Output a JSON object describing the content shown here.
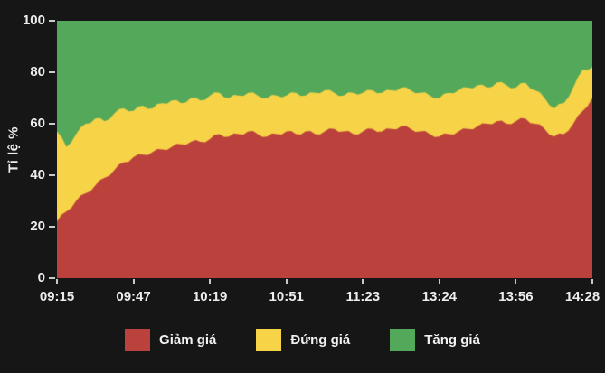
{
  "chart_data": {
    "type": "area",
    "variant": "stacked-percent",
    "title": "",
    "xlabel": "",
    "ylabel": "Tỉ lệ %",
    "ylim": [
      0,
      100
    ],
    "yticks": [
      0,
      20,
      40,
      60,
      80,
      100
    ],
    "xticks": [
      "09:15",
      "09:47",
      "10:19",
      "10:51",
      "11:23",
      "13:24",
      "13:56",
      "14:28"
    ],
    "grid": false,
    "legend_position": "bottom",
    "colors": {
      "background": "#161616",
      "text": "#ededed",
      "tick": "#c9c9c9"
    },
    "series": [
      {
        "name": "Giảm giá",
        "color": "#bb423c",
        "values": [
          22,
          26,
          30,
          33,
          36,
          39,
          42,
          45,
          47,
          48,
          49,
          50,
          51,
          52,
          53,
          53,
          54,
          56,
          55,
          56,
          57,
          56,
          55,
          56,
          57,
          56,
          57,
          56,
          57,
          58,
          57,
          56,
          57,
          58,
          57,
          58,
          59,
          58,
          57,
          56,
          55,
          56,
          57,
          58,
          59,
          60,
          61,
          60,
          61,
          62,
          60,
          58,
          55,
          56,
          60,
          65,
          70
        ]
      },
      {
        "name": "Đứng giá",
        "color": "#f7d348",
        "values": [
          35,
          25,
          26,
          27,
          26,
          22,
          22,
          21,
          18,
          19,
          17,
          18,
          18,
          16,
          17,
          16,
          17,
          16,
          15,
          15,
          15,
          15,
          15,
          15,
          14,
          16,
          14,
          16,
          16,
          14,
          14,
          16,
          15,
          15,
          15,
          15,
          15,
          15,
          15,
          15,
          15,
          16,
          16,
          16,
          16,
          14,
          15,
          15,
          13,
          14,
          13,
          12,
          11,
          12,
          14,
          16,
          12
        ]
      },
      {
        "name": "Tăng giá",
        "color": "#54a85a",
        "values": [
          43,
          49,
          44,
          40,
          38,
          39,
          36,
          34,
          35,
          33,
          34,
          32,
          31,
          32,
          30,
          31,
          29,
          28,
          30,
          29,
          28,
          29,
          30,
          29,
          29,
          28,
          29,
          28,
          27,
          28,
          29,
          28,
          28,
          27,
          28,
          27,
          26,
          27,
          28,
          29,
          30,
          28,
          27,
          26,
          25,
          26,
          24,
          25,
          26,
          24,
          27,
          30,
          34,
          32,
          26,
          19,
          18
        ]
      }
    ]
  }
}
